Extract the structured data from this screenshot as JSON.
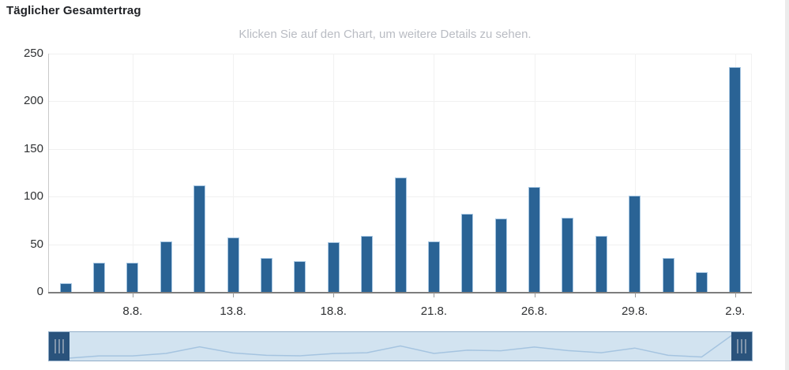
{
  "header": {
    "title": "Täglicher Gesamtertrag",
    "subtitle": "Klicken Sie auf den Chart, um weitere Details zu sehen."
  },
  "colors": {
    "bar_fill": "#2a6395",
    "bar_border": "#a6c6e2",
    "grid_h": "#f0f0f0",
    "grid_v": "#f2f2f2",
    "x_axis_line": "#7d7d7d",
    "y_axis_line": "#c9c9c9",
    "tick_mark": "#9a9a9a",
    "axis_label": "#2f3133",
    "subtitle_text": "#b9bcc3",
    "navigator_fill": "#d2e3f0",
    "navigator_border": "#92aec9",
    "navigator_line": "#a5c4e0",
    "handle_fill": "#2a537c",
    "handle_grip": "#8095ab",
    "scrollbar_track": "#ececec"
  },
  "chart_data": {
    "type": "bar",
    "title": "Täglicher Gesamtertrag",
    "subtitle": "Klicken Sie auf den Chart, um weitere Details zu sehen.",
    "values": [
      9,
      31,
      31,
      53,
      112,
      57,
      36,
      32,
      52,
      59,
      120,
      53,
      82,
      77,
      110,
      78,
      59,
      101,
      36,
      21,
      236
    ],
    "categories": [
      "",
      "",
      "8.8.",
      "",
      "",
      "13.8.",
      "",
      "",
      "18.8.",
      "",
      "",
      "21.8.",
      "",
      "",
      "26.8.",
      "",
      "",
      "29.8.",
      "",
      "",
      "2.9."
    ],
    "x_tick_labels": [
      "8.8.",
      "13.8.",
      "18.8.",
      "21.8.",
      "26.8.",
      "29.8.",
      "2.9."
    ],
    "x_tick_bar_index": [
      2,
      5,
      8,
      11,
      14,
      17,
      20
    ],
    "y_ticks": [
      0,
      50,
      100,
      150,
      200,
      250
    ],
    "ylim": [
      0,
      250
    ],
    "xlabel": "",
    "ylabel": "",
    "grid": "on",
    "legend": "off"
  },
  "navigator": {
    "left_handle": "range-start-handle",
    "right_handle": "range-end-handle"
  }
}
